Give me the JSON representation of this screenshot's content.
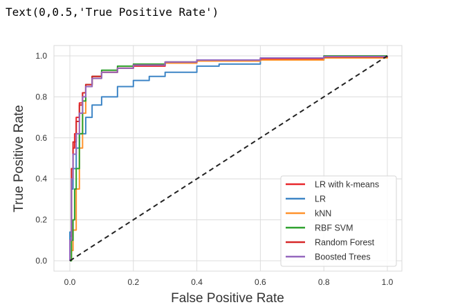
{
  "output_text": "Text(0,0.5,'True Positive Rate')",
  "chart_data": {
    "type": "line",
    "title": "",
    "xlabel": "False Positive Rate",
    "ylabel": "True Positive Rate",
    "xlim": [
      -0.05,
      1.05
    ],
    "ylim": [
      -0.05,
      1.05
    ],
    "xticks": [
      "0.0",
      "0.2",
      "0.4",
      "0.6",
      "0.8",
      "1.0"
    ],
    "yticks": [
      "0.0",
      "0.2",
      "0.4",
      "0.6",
      "0.8",
      "1.0"
    ],
    "grid": true,
    "legend_position": "lower-right",
    "series": [
      {
        "name": "LR with k-means",
        "color": "#e8262b",
        "x": [
          0,
          0.0,
          0.005,
          0.01,
          0.015,
          0.02,
          0.03,
          0.04,
          0.05,
          0.07,
          0.1,
          0.15,
          0.2,
          0.3,
          0.4,
          0.6,
          0.8,
          1.0
        ],
        "y": [
          0,
          0.12,
          0.4,
          0.55,
          0.62,
          0.7,
          0.77,
          0.82,
          0.86,
          0.9,
          0.92,
          0.94,
          0.95,
          0.965,
          0.975,
          0.985,
          0.995,
          1.0
        ]
      },
      {
        "name": "LR",
        "color": "#3d85c6",
        "x": [
          0,
          0.0,
          0.005,
          0.01,
          0.02,
          0.03,
          0.05,
          0.07,
          0.1,
          0.15,
          0.2,
          0.25,
          0.3,
          0.4,
          0.47,
          0.6,
          0.8,
          1.0
        ],
        "y": [
          0,
          0.14,
          0.35,
          0.45,
          0.55,
          0.62,
          0.7,
          0.76,
          0.8,
          0.85,
          0.88,
          0.9,
          0.92,
          0.95,
          0.96,
          0.98,
          0.995,
          1.0
        ]
      },
      {
        "name": "kNN",
        "color": "#ff922b",
        "x": [
          0,
          0.005,
          0.01,
          0.02,
          0.03,
          0.04,
          0.05,
          0.07,
          0.1,
          0.15,
          0.2,
          0.3,
          0.4,
          0.6,
          0.8,
          1.0
        ],
        "y": [
          0,
          0.05,
          0.15,
          0.35,
          0.55,
          0.72,
          0.85,
          0.89,
          0.92,
          0.94,
          0.955,
          0.965,
          0.975,
          0.98,
          0.99,
          1.0
        ]
      },
      {
        "name": "RBF SVM",
        "color": "#2ca02c",
        "x": [
          0,
          0.005,
          0.01,
          0.015,
          0.02,
          0.03,
          0.04,
          0.05,
          0.07,
          0.1,
          0.15,
          0.2,
          0.3,
          0.4,
          0.6,
          0.8,
          1.0
        ],
        "y": [
          0,
          0.1,
          0.2,
          0.35,
          0.45,
          0.62,
          0.78,
          0.86,
          0.9,
          0.93,
          0.95,
          0.96,
          0.97,
          0.98,
          0.99,
          1.0,
          1.0
        ]
      },
      {
        "name": "Random Forest",
        "color": "#d62728",
        "x": [
          0,
          0.0,
          0.005,
          0.01,
          0.02,
          0.03,
          0.04,
          0.05,
          0.07,
          0.1,
          0.15,
          0.2,
          0.3,
          0.4,
          0.6,
          0.8,
          1.0
        ],
        "y": [
          0,
          0.1,
          0.45,
          0.58,
          0.68,
          0.76,
          0.82,
          0.86,
          0.9,
          0.92,
          0.94,
          0.955,
          0.97,
          0.98,
          0.99,
          0.995,
          1.0
        ]
      },
      {
        "name": "Boosted Trees",
        "color": "#9467bd",
        "x": [
          0,
          0.0,
          0.005,
          0.01,
          0.02,
          0.03,
          0.04,
          0.05,
          0.07,
          0.1,
          0.15,
          0.2,
          0.3,
          0.4,
          0.6,
          0.8,
          1.0
        ],
        "y": [
          0,
          0.1,
          0.4,
          0.52,
          0.62,
          0.72,
          0.8,
          0.85,
          0.89,
          0.92,
          0.94,
          0.955,
          0.97,
          0.98,
          0.99,
          0.997,
          1.0
        ]
      }
    ],
    "reference_line": {
      "x": [
        0,
        1
      ],
      "y": [
        0,
        1
      ],
      "color": "#222222",
      "style": "dashed"
    }
  }
}
